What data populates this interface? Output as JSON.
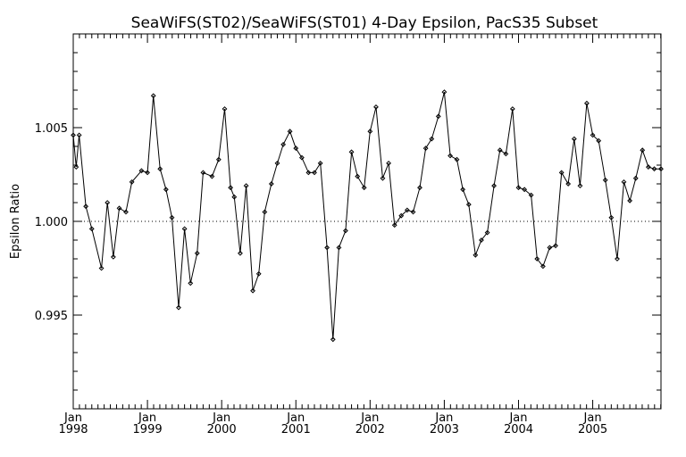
{
  "chart_data": {
    "type": "line",
    "title": "SeaWiFS(ST02)/SeaWiFS(ST01) 4-Day Epsilon, PacS35 Subset",
    "xlabel": "",
    "ylabel": "Epsilon Ratio",
    "xlim": [
      1998.0,
      2005.92
    ],
    "ylim": [
      0.99,
      1.01
    ],
    "y_ticks": [
      {
        "value": 0.995,
        "label": "0.995"
      },
      {
        "value": 1.0,
        "label": "1.000"
      },
      {
        "value": 1.005,
        "label": "1.005"
      }
    ],
    "x_ticks": [
      {
        "value": 1998,
        "month": "Jan",
        "year": "1998"
      },
      {
        "value": 1999,
        "month": "Jan",
        "year": "1999"
      },
      {
        "value": 2000,
        "month": "Jan",
        "year": "2000"
      },
      {
        "value": 2001,
        "month": "Jan",
        "year": "2001"
      },
      {
        "value": 2002,
        "month": "Jan",
        "year": "2002"
      },
      {
        "value": 2003,
        "month": "Jan",
        "year": "2003"
      },
      {
        "value": 2004,
        "month": "Jan",
        "year": "2004"
      },
      {
        "value": 2005,
        "month": "Jan",
        "year": "2005"
      }
    ],
    "reference_line": {
      "y": 1.0,
      "style": "dotted"
    },
    "grid": false,
    "series": [
      {
        "x": [
          1998.0,
          1998.04,
          1998.08,
          1998.17,
          1998.25,
          1998.38,
          1998.46,
          1998.54,
          1998.62,
          1998.71,
          1998.79,
          1998.92,
          1999.0,
          1999.08,
          1999.17,
          1999.25,
          1999.33,
          1999.42,
          1999.5,
          1999.58,
          1999.67,
          1999.75,
          1999.87,
          1999.96,
          2000.04,
          2000.12,
          2000.17,
          2000.25,
          2000.33,
          2000.42,
          2000.5,
          2000.58,
          2000.67,
          2000.75,
          2000.83,
          2000.92,
          2001.0,
          2001.08,
          2001.17,
          2001.25,
          2001.33,
          2001.42,
          2001.5,
          2001.58,
          2001.67,
          2001.75,
          2001.83,
          2001.92,
          2002.0,
          2002.08,
          2002.17,
          2002.25,
          2002.33,
          2002.42,
          2002.5,
          2002.58,
          2002.67,
          2002.75,
          2002.83,
          2002.92,
          2003.0,
          2003.08,
          2003.17,
          2003.25,
          2003.33,
          2003.42,
          2003.5,
          2003.58,
          2003.67,
          2003.75,
          2003.83,
          2003.92,
          2004.0,
          2004.08,
          2004.17,
          2004.25,
          2004.33,
          2004.42,
          2004.5,
          2004.58,
          2004.67,
          2004.75,
          2004.83,
          2004.92,
          2005.0,
          2005.08,
          2005.17,
          2005.25,
          2005.33,
          2005.42,
          2005.5,
          2005.58,
          2005.67,
          2005.75,
          2005.83,
          2005.92
        ],
        "y": [
          1.0046,
          1.0029,
          1.0046,
          1.0008,
          0.9996,
          0.9975,
          1.001,
          0.9981,
          1.0007,
          1.0005,
          1.0021,
          1.0027,
          1.0026,
          1.0067,
          1.0028,
          1.0017,
          1.0002,
          0.9954,
          0.9996,
          0.9967,
          0.9983,
          1.0026,
          1.0024,
          1.0033,
          1.006,
          1.0018,
          1.0013,
          0.9983,
          1.0019,
          0.9963,
          0.9972,
          1.0005,
          1.002,
          1.0031,
          1.0041,
          1.0048,
          1.0039,
          1.0034,
          1.0026,
          1.0026,
          1.0031,
          0.9986,
          0.9937,
          0.9986,
          0.9995,
          1.0037,
          1.0024,
          1.0018,
          1.0048,
          1.0061,
          1.0023,
          1.0031,
          0.9998,
          1.0003,
          1.0006,
          1.0005,
          1.0018,
          1.0039,
          1.0044,
          1.0056,
          1.0069,
          1.0035,
          1.0033,
          1.0017,
          1.0009,
          0.9982,
          0.999,
          0.9994,
          1.0019,
          1.0038,
          1.0036,
          1.006,
          1.0018,
          1.0017,
          1.0014,
          0.998,
          0.9976,
          0.9986,
          0.9987,
          1.0026,
          1.002,
          1.0044,
          1.0019,
          1.0063,
          1.0046,
          1.0043,
          1.0022,
          1.0002,
          0.998,
          1.0021,
          1.0011,
          1.0023,
          1.0038,
          1.0029,
          1.0028,
          1.0028
        ]
      }
    ]
  }
}
